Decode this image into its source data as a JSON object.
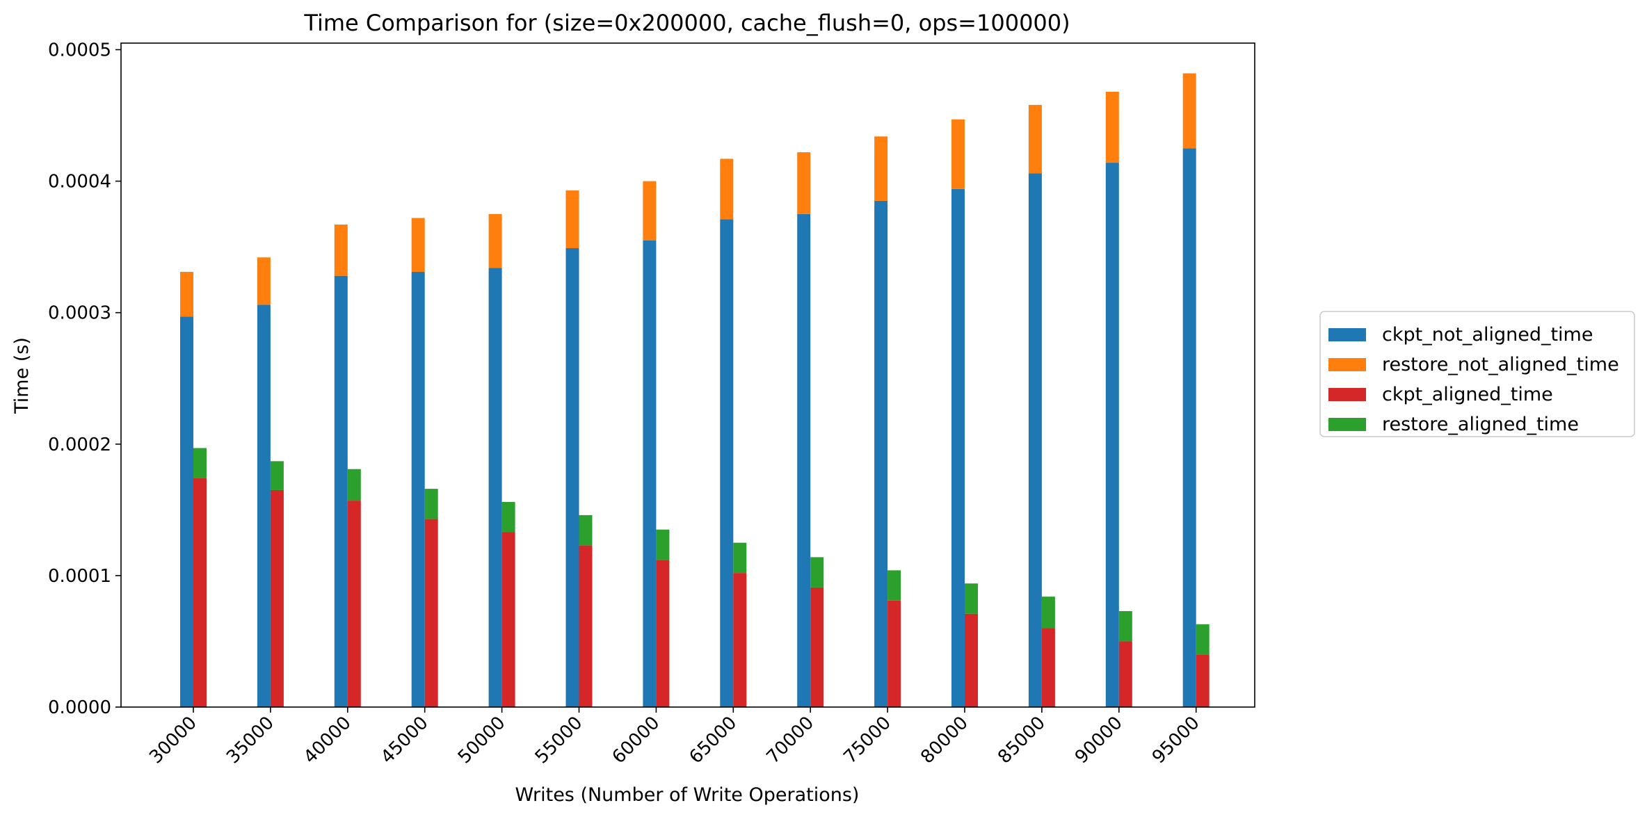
{
  "chart_data": {
    "type": "bar",
    "stacked_groups": true,
    "title": "Time Comparison for (size=0x200000, cache_flush=0, ops=100000)",
    "xlabel": "Writes (Number of Write Operations)",
    "ylabel": "Time (s)",
    "ylim": [
      0,
      0.000505
    ],
    "yticks": [
      "0.0000",
      "0.0001",
      "0.0002",
      "0.0003",
      "0.0004",
      "0.0005"
    ],
    "ytick_values": [
      0,
      0.0001,
      0.0002,
      0.0003,
      0.0004,
      0.0005
    ],
    "categories": [
      "30000",
      "35000",
      "40000",
      "45000",
      "50000",
      "55000",
      "60000",
      "65000",
      "70000",
      "75000",
      "80000",
      "85000",
      "90000",
      "95000"
    ],
    "legend_position": "right",
    "grid": false,
    "series": [
      {
        "name": "ckpt_not_aligned_time",
        "color": "#1f77b4",
        "stack": "not_aligned",
        "values": [
          0.000297,
          0.000306,
          0.000328,
          0.000331,
          0.000334,
          0.000349,
          0.000355,
          0.000371,
          0.000375,
          0.000385,
          0.000394,
          0.000406,
          0.000414,
          0.000425
        ]
      },
      {
        "name": "restore_not_aligned_time",
        "color": "#ff7f0e",
        "stack": "not_aligned",
        "values": [
          3.4e-05,
          3.6e-05,
          3.9e-05,
          4.1e-05,
          4.1e-05,
          4.4e-05,
          4.5e-05,
          4.6e-05,
          4.7e-05,
          4.9e-05,
          5.3e-05,
          5.2e-05,
          5.4e-05,
          5.7e-05
        ]
      },
      {
        "name": "ckpt_aligned_time",
        "color": "#d62728",
        "stack": "aligned",
        "values": [
          0.000174,
          0.000165,
          0.000157,
          0.000143,
          0.000133,
          0.000123,
          0.000112,
          0.000102,
          9.1e-05,
          8.1e-05,
          7.1e-05,
          6e-05,
          5e-05,
          4e-05
        ]
      },
      {
        "name": "restore_aligned_time",
        "color": "#2ca02c",
        "stack": "aligned",
        "values": [
          2.3e-05,
          2.2e-05,
          2.4e-05,
          2.3e-05,
          2.3e-05,
          2.3e-05,
          2.3e-05,
          2.3e-05,
          2.3e-05,
          2.3e-05,
          2.3e-05,
          2.4e-05,
          2.3e-05,
          2.3e-05
        ]
      }
    ]
  }
}
